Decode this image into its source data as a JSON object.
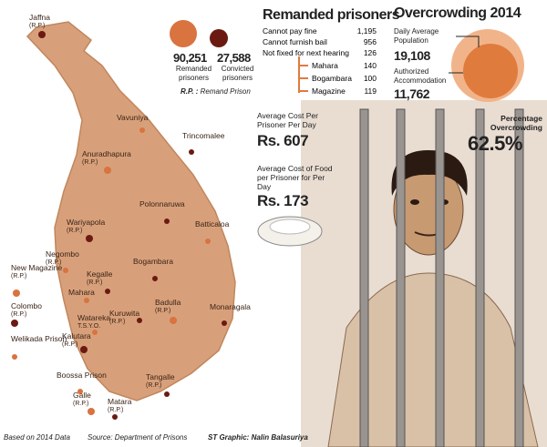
{
  "summary": {
    "remanded": {
      "value": "90,251",
      "label": "Remanded prisoners"
    },
    "convicted": {
      "value": "27,588",
      "label": "Convicted prisoners"
    },
    "note_key": "R.P. :",
    "note_text": "Remand Prison"
  },
  "remanded": {
    "title": "Remanded prisoners",
    "rows": [
      [
        "Cannot pay fine",
        "1,195"
      ],
      [
        "Cannot furnish bail",
        "956"
      ],
      [
        "Not fixed for next hearing",
        "126"
      ]
    ],
    "subrows": [
      [
        "Mahara",
        "140"
      ],
      [
        "Bogambara",
        "100"
      ],
      [
        "Magazine",
        "119"
      ]
    ]
  },
  "overcrowding": {
    "title": "Overcrowding 2014",
    "population_label": "Daily Average Population",
    "population_value": "19,108",
    "accommodation_label": "Authorized Accommodation",
    "accommodation_value": "11,762",
    "percentage_label": "Percentage Overcrowding",
    "percentage_value": "62.5%"
  },
  "costs": {
    "per_day_label": "Average Cost Per Prisoner Per Day",
    "per_day_value": "Rs. 607",
    "food_label": "Average Cost of Food per Prisoner for Per Day",
    "food_value": "Rs. 173"
  },
  "map": {
    "places": [
      [
        "Jaffna",
        "(R.P.)"
      ],
      [
        "Vavuniya",
        null
      ],
      [
        "Trincomalee",
        null
      ],
      [
        "Anuradhapura",
        "(R.P.)"
      ],
      [
        "Polonnaruwa",
        null
      ],
      [
        "Batticaloa",
        null
      ],
      [
        "Wariyapola",
        "(R.P.)"
      ],
      [
        "Negombo",
        "(R.P.)"
      ],
      [
        "Bogambara",
        null
      ],
      [
        "New Magazine",
        "(R.P.)"
      ],
      [
        "Kegalle",
        "(R.P.)"
      ],
      [
        "Mahara",
        null
      ],
      [
        "Colombo",
        "(R.P.)"
      ],
      [
        "Watareka",
        "T.S.Y.O."
      ],
      [
        "Kuruwita",
        "(R.P.)"
      ],
      [
        "Badulla",
        "(R.P.)"
      ],
      [
        "Monaragala",
        null
      ],
      [
        "Welikada Prison",
        null
      ],
      [
        "Kalutara",
        "(R.P.)"
      ],
      [
        "Boossa Prison",
        null
      ],
      [
        "Tangalle",
        "(R.P.)"
      ],
      [
        "Galle",
        "(R.P.)"
      ],
      [
        "Matara",
        "(R.P.)"
      ]
    ]
  },
  "footer": {
    "basis": "Based on 2014 Data",
    "source": "Source: Department of Prisons",
    "credit": "ST Graphic: Nalin Balasuriya"
  }
}
